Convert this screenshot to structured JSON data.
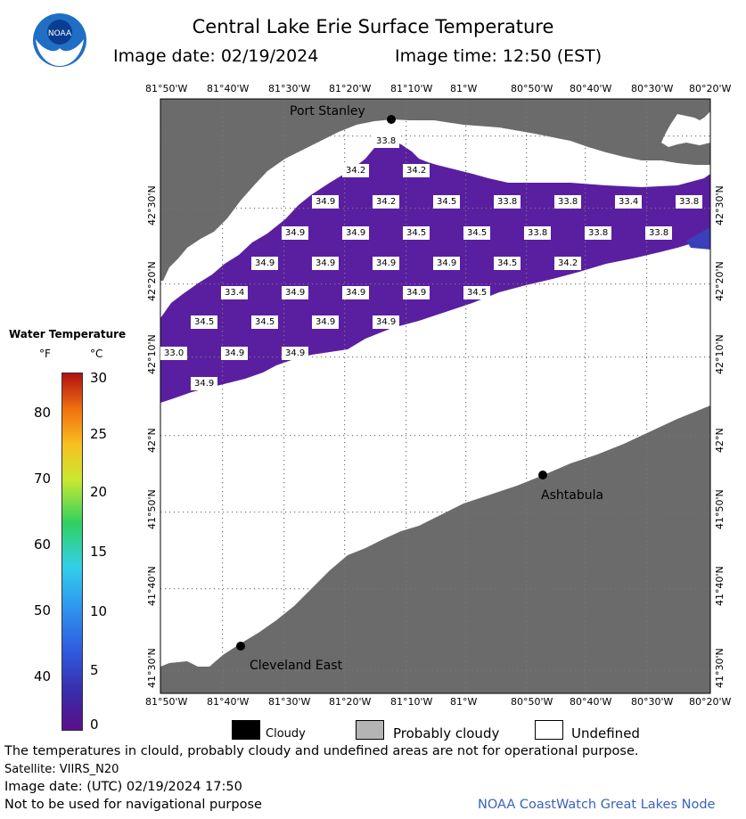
{
  "header": {
    "title": "Central Lake Erie Surface Temperature",
    "image_date": "Image date: 02/19/2024",
    "image_time": "Image time: 12:50 (EST)",
    "logo_text": "NOAA"
  },
  "map": {
    "lon_labels": [
      "81°50'W",
      "81°40'W",
      "81°30'W",
      "81°20'W",
      "81°10'W",
      "81°W",
      "80°50'W",
      "80°40'W",
      "80°30'W",
      "80°20'W"
    ],
    "lat_labels": [
      "42°30'N",
      "42°20'N",
      "42°10'N",
      "42°N",
      "41°50'N",
      "41°40'N",
      "41°30'N"
    ],
    "places": [
      {
        "name": "Port Stanley"
      },
      {
        "name": "Ashtabula"
      },
      {
        "name": "Cleveland East"
      }
    ],
    "temperature_labels": [
      "33.8",
      "34.2",
      "34.2",
      "34.9",
      "34.2",
      "34.5",
      "33.8",
      "33.8",
      "33.4",
      "33.8",
      "34.9",
      "34.9",
      "34.5",
      "34.5",
      "33.8",
      "33.8",
      "33.8",
      "34.9",
      "34.9",
      "34.9",
      "34.9",
      "34.5",
      "34.2",
      "33.4",
      "34.9",
      "34.9",
      "34.9",
      "34.5",
      "34.5",
      "34.5",
      "34.9",
      "34.9",
      "33.0",
      "34.9",
      "34.9",
      "34.9"
    ],
    "colors": {
      "land": "#6b6b6b",
      "water_sst": "#5a1fa0",
      "undefined": "#ffffff"
    }
  },
  "legend": {
    "title": "Water Temperature",
    "unit_f": "°F",
    "unit_c": "°C",
    "f_ticks": [
      "80",
      "70",
      "60",
      "50",
      "40"
    ],
    "c_ticks": [
      "30",
      "25",
      "20",
      "15",
      "10",
      "5",
      "0"
    ],
    "items": [
      {
        "label": "Cloudy",
        "color": "#000000"
      },
      {
        "label": "Probably cloudy",
        "color": "#b4b4b4"
      },
      {
        "label": "Undefined",
        "color": "#ffffff"
      }
    ]
  },
  "footer": {
    "disclaimer": "The temperatures in clould, probably cloudy and undefined areas are not for operational purpose.",
    "satellite": "Satellite: VIIRS_N20",
    "utc_date": "Image date: (UTC) 02/19/2024   17:50",
    "nav_warning": "Not to be used for navigational purpose",
    "credit": "NOAA CoastWatch Great Lakes Node"
  }
}
